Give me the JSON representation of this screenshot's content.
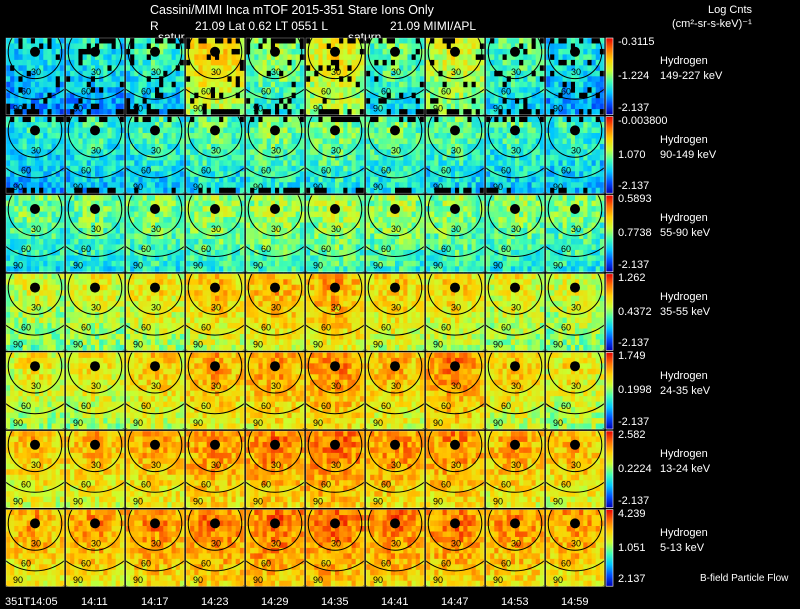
{
  "header": {
    "title": "Cassini/MIMI Inca mTOF  2015-351    Stare    Ions Only",
    "sub_r": "R",
    "sub_vals": "21.09  Lat 0.62  LT 0551  L",
    "sub_mimi": "21.09   MIMI/APL",
    "units_line1": "Log Cnts",
    "units_line2": "(cm²-sr-s-keV)⁻¹",
    "saturn_labels": [
      "satur",
      "saturn"
    ]
  },
  "footer": {
    "flow_label": "B-field Particle Flow"
  },
  "chart_data": {
    "type": "heatmap",
    "title": "Cassini/MIMI Inca mTOF 2015-351 Stare Ions Only",
    "x_tick_labels": [
      "351T14:05",
      "14:11",
      "14:17",
      "14:23",
      "14:29",
      "14:35",
      "14:41",
      "14:47",
      "14:53",
      "14:59"
    ],
    "contour_labels": [
      "30",
      "60",
      "90"
    ],
    "colormap": [
      "#0000b4",
      "#0050ff",
      "#00c8ff",
      "#40ffb0",
      "#c8ff30",
      "#ffd000",
      "#ff7000",
      "#e80000"
    ],
    "rows": [
      {
        "species": "Hydrogen",
        "energy": "149-227 keV",
        "scale_max": "-0.3115",
        "scale_mid": "-1.224",
        "scale_min": "-2.137",
        "intensity": [
          0.28,
          0.3,
          0.35,
          0.62,
          0.45,
          0.58,
          0.4,
          0.55,
          0.38,
          0.3
        ]
      },
      {
        "species": "Hydrogen",
        "energy": "90-149 keV",
        "scale_max": "-0.003800",
        "scale_mid": "1.070",
        "scale_min": "-2.137",
        "intensity": [
          0.32,
          0.34,
          0.36,
          0.4,
          0.42,
          0.42,
          0.4,
          0.38,
          0.36,
          0.34
        ]
      },
      {
        "species": "Hydrogen",
        "energy": "55-90 keV",
        "scale_max": "0.5893",
        "scale_mid": "0.7738",
        "scale_min": "-2.137",
        "intensity": [
          0.42,
          0.42,
          0.44,
          0.46,
          0.48,
          0.48,
          0.47,
          0.45,
          0.44,
          0.43
        ]
      },
      {
        "species": "Hydrogen",
        "energy": "35-55 keV",
        "scale_max": "1.262",
        "scale_mid": "0.4372",
        "scale_min": "-2.137",
        "intensity": [
          0.54,
          0.56,
          0.6,
          0.66,
          0.68,
          0.7,
          0.64,
          0.62,
          0.58,
          0.55
        ]
      },
      {
        "species": "Hydrogen",
        "energy": "24-35 keV",
        "scale_max": "1.749",
        "scale_mid": "0.1998",
        "scale_min": "-2.137",
        "intensity": [
          0.58,
          0.6,
          0.64,
          0.7,
          0.72,
          0.75,
          0.68,
          0.74,
          0.64,
          0.6
        ]
      },
      {
        "species": "Hydrogen",
        "energy": "13-24 keV",
        "scale_max": "2.582",
        "scale_mid": "0.2224",
        "scale_min": "-2.137",
        "intensity": [
          0.66,
          0.68,
          0.7,
          0.74,
          0.76,
          0.78,
          0.74,
          0.74,
          0.7,
          0.68
        ]
      },
      {
        "species": "Hydrogen",
        "energy": "5-13 keV",
        "scale_max": "4.239",
        "scale_mid": "1.051",
        "scale_min": "2.137",
        "intensity": [
          0.7,
          0.72,
          0.74,
          0.76,
          0.78,
          0.78,
          0.76,
          0.76,
          0.74,
          0.72
        ]
      }
    ]
  }
}
